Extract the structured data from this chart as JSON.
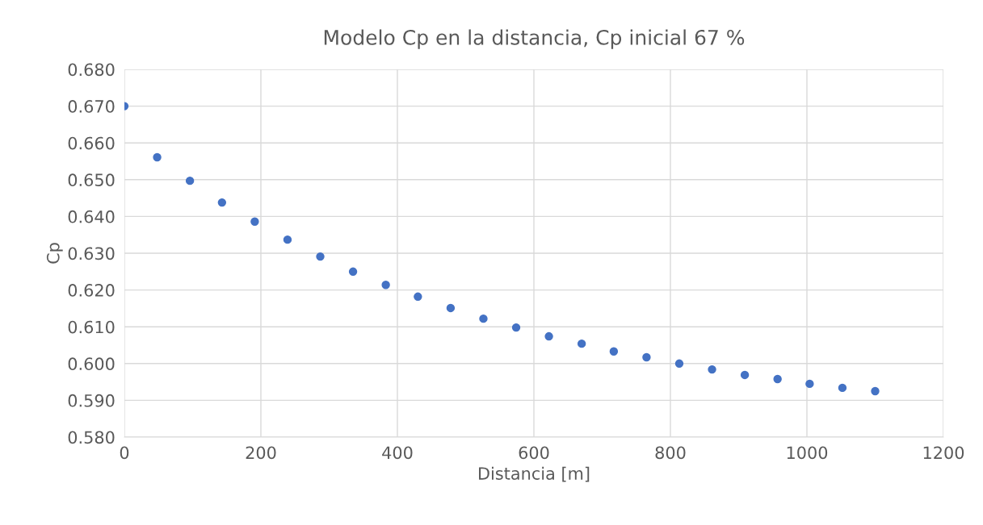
{
  "chart_data": {
    "type": "scatter",
    "title": "Modelo Cp en la distancia, Cp inicial 67 %",
    "xlabel": "Distancia [m]",
    "ylabel": "Cp",
    "x": [
      0,
      48,
      96,
      143,
      191,
      239,
      287,
      335,
      383,
      430,
      478,
      526,
      574,
      622,
      670,
      717,
      765,
      813,
      861,
      909,
      957,
      1004,
      1052,
      1100
    ],
    "series": [
      {
        "color": "#4472c4",
        "values": [
          0.67,
          0.6561,
          0.6497,
          0.6438,
          0.6386,
          0.6337,
          0.6291,
          0.625,
          0.6214,
          0.6182,
          0.6151,
          0.6122,
          0.6098,
          0.6074,
          0.6054,
          0.6033,
          0.6017,
          0.6,
          0.5984,
          0.5969,
          0.5958,
          0.5945,
          0.5934,
          0.5925
        ]
      }
    ],
    "xlim": [
      0,
      1200
    ],
    "xticks": [
      0,
      200,
      400,
      600,
      800,
      1000,
      1200
    ],
    "ylim": [
      0.58,
      0.68
    ],
    "yticks": [
      {
        "value": 0.58,
        "label": "0.580"
      },
      {
        "value": 0.59,
        "label": "0.590"
      },
      {
        "value": 0.6,
        "label": "0.600"
      },
      {
        "value": 0.61,
        "label": "0.610"
      },
      {
        "value": 0.62,
        "label": "0.620"
      },
      {
        "value": 0.63,
        "label": "0.630"
      },
      {
        "value": 0.64,
        "label": "0.640"
      },
      {
        "value": 0.65,
        "label": "0.650"
      },
      {
        "value": 0.66,
        "label": "0.660"
      },
      {
        "value": 0.67,
        "label": "0.670"
      },
      {
        "value": 0.68,
        "label": "0.680"
      }
    ],
    "grid": true,
    "marker": "circle"
  }
}
